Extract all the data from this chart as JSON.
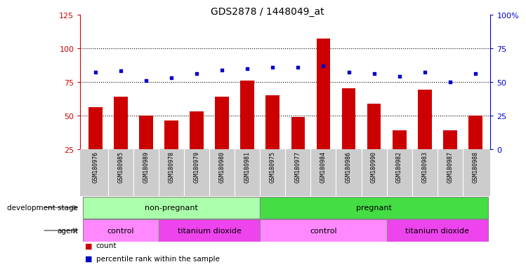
{
  "title": "GDS2878 / 1448049_at",
  "samples": [
    "GSM180976",
    "GSM180985",
    "GSM180989",
    "GSM180978",
    "GSM180979",
    "GSM180980",
    "GSM180981",
    "GSM180975",
    "GSM180977",
    "GSM180984",
    "GSM180986",
    "GSM180990",
    "GSM180982",
    "GSM180983",
    "GSM180987",
    "GSM180988"
  ],
  "counts": [
    56,
    64,
    50,
    46,
    53,
    64,
    76,
    65,
    49,
    107,
    70,
    59,
    39,
    69,
    39,
    50
  ],
  "percentile_ranks": [
    57,
    58,
    51,
    53,
    56,
    59,
    60,
    61,
    61,
    62,
    57,
    56,
    54,
    57,
    50,
    56
  ],
  "bar_color": "#cc0000",
  "dot_color": "#0000cc",
  "left_yaxis_color": "#cc0000",
  "right_yaxis_color": "#0000cc",
  "left_ylim": [
    25,
    125
  ],
  "left_yticks": [
    25,
    50,
    75,
    100,
    125
  ],
  "right_ylim": [
    0,
    100
  ],
  "right_yticks": [
    0,
    25,
    50,
    75,
    100
  ],
  "right_yticklabels": [
    "0",
    "25",
    "50",
    "75",
    "100%"
  ],
  "hlines": [
    50,
    75,
    100
  ],
  "dev_groups": [
    {
      "label": "non-pregnant",
      "start": 0,
      "end": 7,
      "color": "#aaffaa"
    },
    {
      "label": "pregnant",
      "start": 7,
      "end": 16,
      "color": "#44dd44"
    }
  ],
  "agent_groups": [
    {
      "label": "control",
      "start": 0,
      "end": 3,
      "color": "#ff88ff"
    },
    {
      "label": "titanium dioxide",
      "start": 3,
      "end": 7,
      "color": "#ee44ee"
    },
    {
      "label": "control",
      "start": 7,
      "end": 12,
      "color": "#ff88ff"
    },
    {
      "label": "titanium dioxide",
      "start": 12,
      "end": 16,
      "color": "#ee44ee"
    }
  ],
  "tick_bg_color": "#cccccc",
  "plot_bg_color": "#ffffff",
  "bar_bottom": 25
}
